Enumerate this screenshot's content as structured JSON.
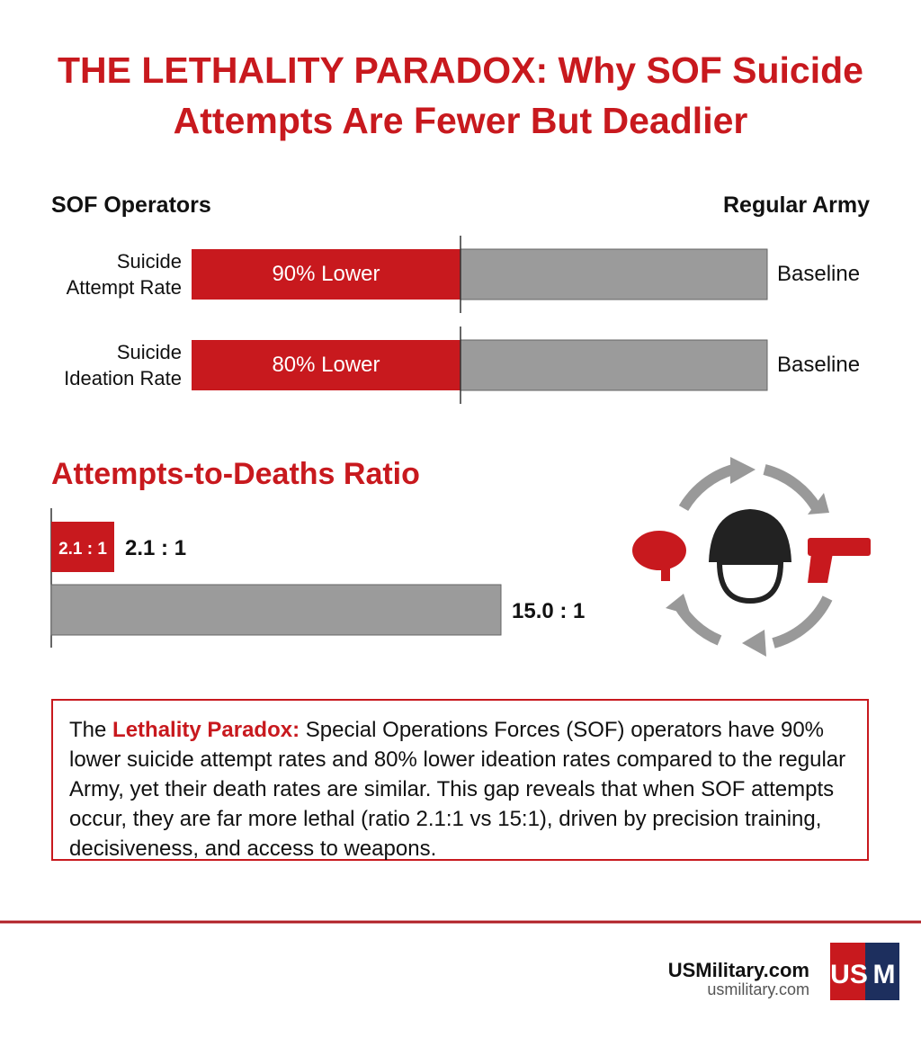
{
  "title": "THE LETHALITY PARADOX: Why SOF Suicide Attempts Are Fewer But Deadlier",
  "comparison": {
    "left_label": "SOF Operators",
    "right_label": "Regular Army",
    "rows": [
      {
        "label": "Suicide Attempt Rate",
        "sof": "90% Lower",
        "army": "Baseline"
      },
      {
        "label": "Suicide Ideation Rate",
        "sof": "80% Lower",
        "army": "Baseline"
      }
    ]
  },
  "chart_data": {
    "type": "bar",
    "orientation": "horizontal",
    "title": "Attempts-to-Deaths Ratio",
    "values": [
      2.1,
      15.0
    ],
    "value_labels": [
      "2.1 : 1",
      "15.0 : 1"
    ],
    "colors": [
      "#c8191e",
      "#9b9b9b"
    ],
    "xlim": [
      0,
      15
    ]
  },
  "note": {
    "lead": "The",
    "highlight": "Lethality Paradox:",
    "text": "Special Operations Forces (SOF) operators have 90% lower suicide attempt rates and 80% lower ideation rates compared to the regular Army, yet their death rates are similar. This gap reveals that when SOF attempts occur, they are far more lethal (ratio 2.1:1 vs 15:1), driven by precision training, decisiveness, and access to weapons."
  },
  "footer": {
    "brand": "USMilitary.com",
    "url": "usmilitary.com",
    "logo_left": "US",
    "logo_right": "M"
  }
}
